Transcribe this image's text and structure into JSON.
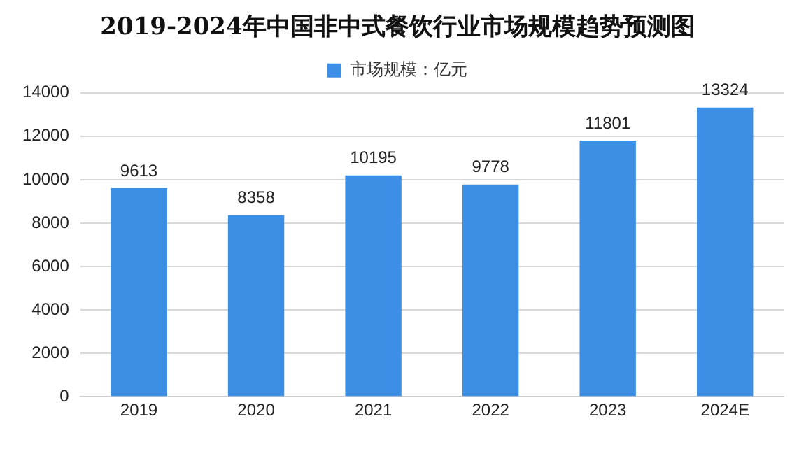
{
  "chart_data": {
    "type": "bar",
    "title": "2019-2024年中国非中式餐饮行业市场规模趋势预测图",
    "categories": [
      "2019",
      "2020",
      "2021",
      "2022",
      "2023",
      "2024E"
    ],
    "series": [
      {
        "name": "市场规模：亿元",
        "color": "#3d8fe6",
        "values": [
          9613,
          8358,
          10195,
          9778,
          11801,
          13324
        ]
      }
    ],
    "ylim": [
      0,
      14000
    ],
    "yticks": [
      0,
      2000,
      4000,
      6000,
      8000,
      10000,
      12000,
      14000
    ],
    "grid": "y",
    "legend": "top",
    "data_labels": true
  }
}
